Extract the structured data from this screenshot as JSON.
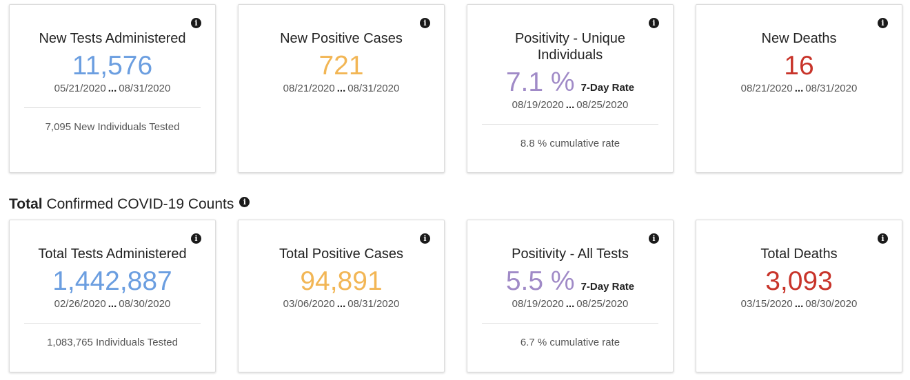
{
  "row1": {
    "tests": {
      "title": "New Tests Administered",
      "value": "11,576",
      "date_start": "05/21/2020",
      "dots": "...",
      "date_end": "08/31/2020",
      "footer": "7,095 New Individuals Tested"
    },
    "cases": {
      "title": "New Positive Cases",
      "value": "721",
      "date_start": "08/21/2020",
      "dots": "...",
      "date_end": "08/31/2020"
    },
    "positivity": {
      "title": "Positivity - Unique Individuals",
      "value": "7.1 %",
      "rate_label": "7-Day Rate",
      "date_start": "08/19/2020",
      "dots": "...",
      "date_end": "08/25/2020",
      "footer": "8.8 % cumulative rate"
    },
    "deaths": {
      "title": "New Deaths",
      "value": "16",
      "date_start": "08/21/2020",
      "dots": "...",
      "date_end": "08/31/2020"
    }
  },
  "section": {
    "bold": "Total",
    "rest": " Confirmed COVID-19 Counts"
  },
  "row2": {
    "tests": {
      "title": "Total Tests Administered",
      "value": "1,442,887",
      "date_start": "02/26/2020",
      "dots": "...",
      "date_end": "08/30/2020",
      "footer": "1,083,765 Individuals Tested"
    },
    "cases": {
      "title": "Total Positive Cases",
      "value": "94,891",
      "date_start": "03/06/2020",
      "dots": "...",
      "date_end": "08/31/2020"
    },
    "positivity": {
      "title": "Positivity - All Tests",
      "value": "5.5 %",
      "rate_label": "7-Day Rate",
      "date_start": "08/19/2020",
      "dots": "...",
      "date_end": "08/25/2020",
      "footer": "6.7 % cumulative rate"
    },
    "deaths": {
      "title": "Total Deaths",
      "value": "3,093",
      "date_start": "03/15/2020",
      "dots": "...",
      "date_end": "08/30/2020"
    }
  },
  "info_icon": "i",
  "colors": {
    "blue": "#6b9ee0",
    "orange": "#f2b655",
    "purple": "#a08ac7",
    "red": "#c8342a"
  },
  "icons": {
    "info": "info-icon"
  }
}
